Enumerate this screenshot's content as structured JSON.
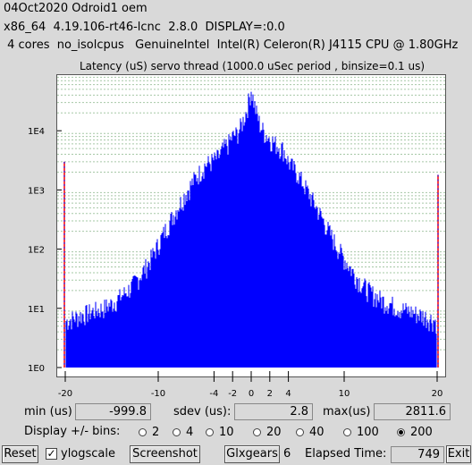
{
  "info": {
    "line1": "04Oct2020 Odroid1 oem",
    "line2": "x86_64  4.19.106-rt46-lcnc  2.8.0  DISPLAY=:0.0",
    "line3": " 4 cores  no_isolcpus   GenuineIntel  Intel(R) Celeron(R) J4115 CPU @ 1.80GHz"
  },
  "chart_data": {
    "type": "bar",
    "title": "Latency (uS) servo thread (1000.0 uSec period , binsize=0.1 us)",
    "yscale": "log",
    "y_tick_labels": [
      "1E0",
      "1E1",
      "1E2",
      "1E3",
      "1E4"
    ],
    "x_tick_labels": [
      "-20",
      "-10",
      "-4",
      "-2",
      "0",
      "2",
      "4",
      "10",
      "20"
    ],
    "x_ticks": [
      -20,
      -10,
      -4,
      -2,
      0,
      2,
      4,
      10,
      20
    ],
    "xlim": [
      -20,
      20
    ],
    "ylim": [
      1,
      60000
    ],
    "series": [
      {
        "color": "#0000ff",
        "x": [
          -20,
          -19,
          -18,
          -17,
          -16,
          -15,
          -14,
          -13,
          -12,
          -11,
          -10,
          -9,
          -8,
          -7,
          -6,
          -5,
          -4,
          -3.5,
          -3,
          -2.5,
          -2,
          -1.5,
          -1,
          -0.5,
          0,
          0.5,
          1,
          1.5,
          2,
          2.5,
          3,
          3.5,
          4,
          5,
          6,
          7,
          8,
          9,
          10,
          11,
          12,
          13,
          14,
          15,
          16,
          17,
          18,
          19,
          20
        ],
        "values": [
          6,
          7,
          8,
          9,
          10,
          12,
          16,
          22,
          35,
          60,
          120,
          250,
          480,
          900,
          1600,
          2600,
          3200,
          3600,
          5000,
          6000,
          8000,
          9000,
          13000,
          22000,
          50000,
          22000,
          12000,
          9000,
          7500,
          6200,
          5500,
          4800,
          3000,
          1900,
          1000,
          520,
          260,
          130,
          70,
          40,
          25,
          18,
          14,
          12,
          10,
          9,
          8,
          7,
          6
        ]
      }
    ],
    "edge_spikes": [
      {
        "x": -20,
        "value": 3000,
        "color": "#ff0000"
      },
      {
        "x": 20,
        "value": 1800,
        "color": "#ff0000"
      }
    ]
  },
  "stats": {
    "min_label": "min (us)",
    "min_value": "-999.8",
    "sdev_label": "sdev (us):",
    "sdev_value": "2.8",
    "max_label": "max(us)",
    "max_value": "2811.6"
  },
  "bins": {
    "label": "Display +/- bins:",
    "options": [
      "2",
      "4",
      "10",
      "20",
      "40",
      "100",
      "200"
    ],
    "selected": "200"
  },
  "buttons": {
    "reset": "Reset",
    "ylogscale": "ylogscale",
    "ylogscale_checked": true,
    "screenshot": "Screenshot",
    "glxgears": "Glxgears",
    "glxgears_count": "6",
    "elapsed_label": "Elapsed Time:",
    "elapsed_value": "749",
    "exit": "Exit"
  }
}
